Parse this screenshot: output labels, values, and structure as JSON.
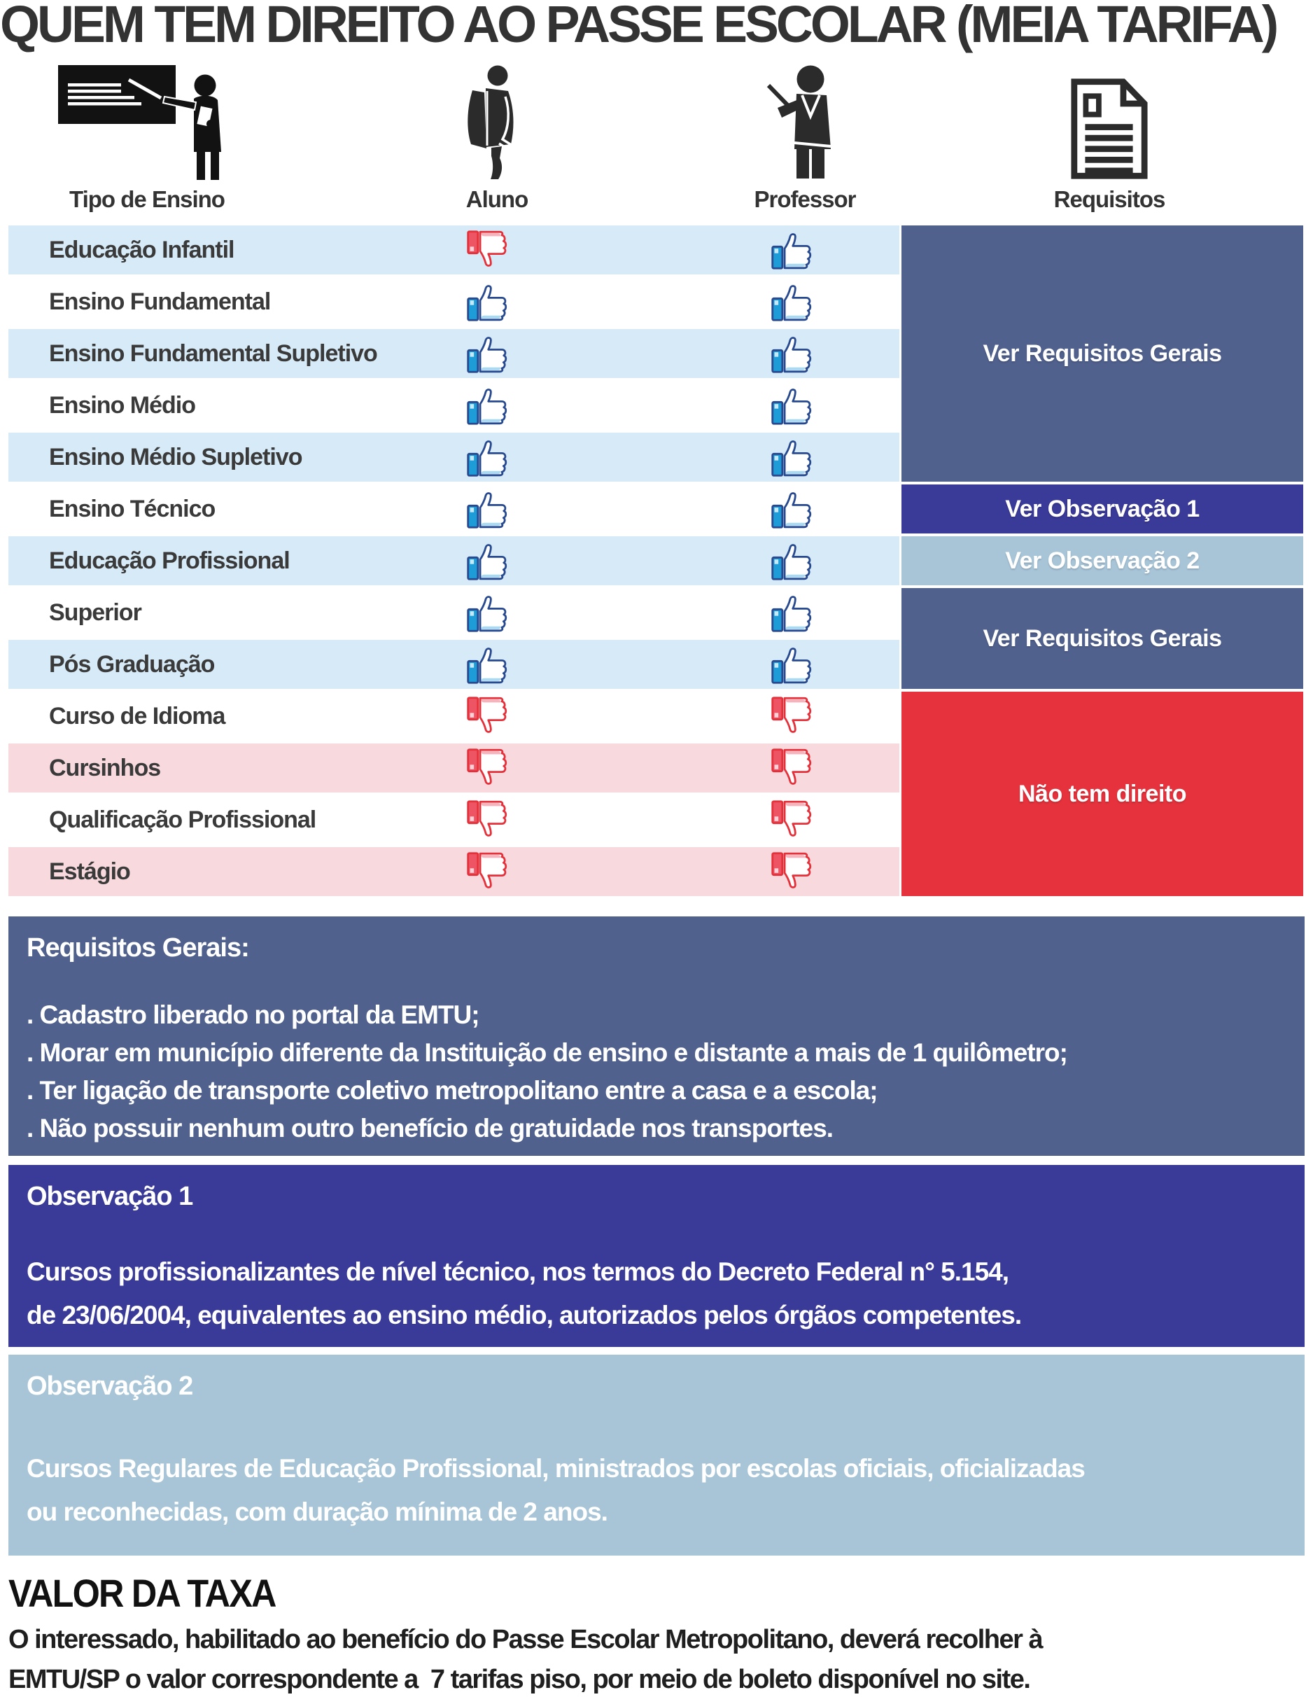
{
  "header": {
    "title": "QUEM TEM DIREITO AO PASSE ESCOLAR (MEIA TARIFA)",
    "columns": [
      {
        "id": "tipo",
        "label": "Tipo de Ensino",
        "icon": "teacher-blackboard-icon"
      },
      {
        "id": "aluno",
        "label": "Aluno",
        "icon": "student-icon"
      },
      {
        "id": "professor",
        "label": "Professor",
        "icon": "professor-icon"
      },
      {
        "id": "requisitos",
        "label": "Requisitos",
        "icon": "document-icon"
      }
    ]
  },
  "table": {
    "rows": [
      {
        "label": "Educação Infantil",
        "aluno": "down",
        "professor": "up",
        "tone": "blue"
      },
      {
        "label": "Ensino Fundamental",
        "aluno": "up",
        "professor": "up",
        "tone": "white"
      },
      {
        "label": "Ensino Fundamental Supletivo",
        "aluno": "up",
        "professor": "up",
        "tone": "blue"
      },
      {
        "label": "Ensino Médio",
        "aluno": "up",
        "professor": "up",
        "tone": "white"
      },
      {
        "label": "Ensino Médio Supletivo",
        "aluno": "up",
        "professor": "up",
        "tone": "blue"
      },
      {
        "label": "Ensino Técnico",
        "aluno": "up",
        "professor": "up",
        "tone": "white"
      },
      {
        "label": "Educação Profissional",
        "aluno": "up",
        "professor": "up",
        "tone": "blue"
      },
      {
        "label": "Superior",
        "aluno": "up",
        "professor": "up",
        "tone": "white"
      },
      {
        "label": "Pós Graduação",
        "aluno": "up",
        "professor": "up",
        "tone": "blue"
      },
      {
        "label": "Curso de Idioma",
        "aluno": "down",
        "professor": "down",
        "tone": "white"
      },
      {
        "label": "Cursinhos",
        "aluno": "down",
        "professor": "down",
        "tone": "pink"
      },
      {
        "label": "Qualificação Profissional",
        "aluno": "down",
        "professor": "down",
        "tone": "white"
      },
      {
        "label": "Estágio",
        "aluno": "down",
        "professor": "down",
        "tone": "pink"
      }
    ],
    "requisito_blocks": [
      {
        "label": "Ver Requisitos Gerais",
        "rows": 5,
        "color": "#51618e"
      },
      {
        "label": "Ver Observação 1",
        "rows": 1,
        "color": "#3a3a99"
      },
      {
        "label": "Ver Observação 2",
        "rows": 1,
        "color": "#a8c5d8"
      },
      {
        "label": "Ver Requisitos Gerais",
        "rows": 2,
        "color": "#51618e"
      },
      {
        "label": "Não tem direito",
        "rows": 4,
        "color": "#e5323c"
      }
    ]
  },
  "sections": {
    "requisitos_gerais": {
      "title": "Requisitos Gerais:",
      "items": [
        ". Cadastro liberado no portal da EMTU;",
        ". Morar em município diferente da Instituição de ensino e distante a mais de 1 quilômetro;",
        ". Ter ligação de transporte coletivo metropolitano entre a casa e a escola;",
        ". Não possuir nenhum outro benefício de gratuidade nos transportes."
      ]
    },
    "observacao1": {
      "title": "Observação 1",
      "body": "Cursos profissionalizantes de nível técnico, nos termos do Decreto Federal n° 5.154,\nde 23/06/2004, equivalentes ao ensino médio, autorizados pelos órgãos competentes."
    },
    "observacao2": {
      "title": "Observação 2",
      "body": "Cursos Regulares de Educação Profissional, ministrados por escolas oficiais, oficializadas\nou reconhecidas, com duração mínima de 2 anos."
    },
    "valor_da_taxa": {
      "title": "VALOR DA TAXA",
      "body": "O interessado, habilitado ao benefício do Passe Escolar Metropolitano, deverá recolher à\nEMTU/SP o valor correspondente a  7 tarifas piso, por meio de boleto disponível no site."
    }
  },
  "colors": {
    "title_text": "#333333",
    "row_label_text": "#3a3a3a",
    "row_blue": "#d6eaf7",
    "row_white": "#ffffff",
    "row_pink": "#f8d9de",
    "slate": "#51618e",
    "indigo": "#3a3a99",
    "steel": "#a8c5d8",
    "red": "#e5323c",
    "thumb_up_outline": "#27498f",
    "thumb_up_cuff": "#1e9cd7",
    "thumb_up_shadow": "#a9daf3",
    "thumb_down_outline": "#e5303a",
    "thumb_down_cuff": "#ed5565",
    "thumb_down_shadow": "#f6b3bc",
    "icon_black": "#1a1a1a"
  }
}
